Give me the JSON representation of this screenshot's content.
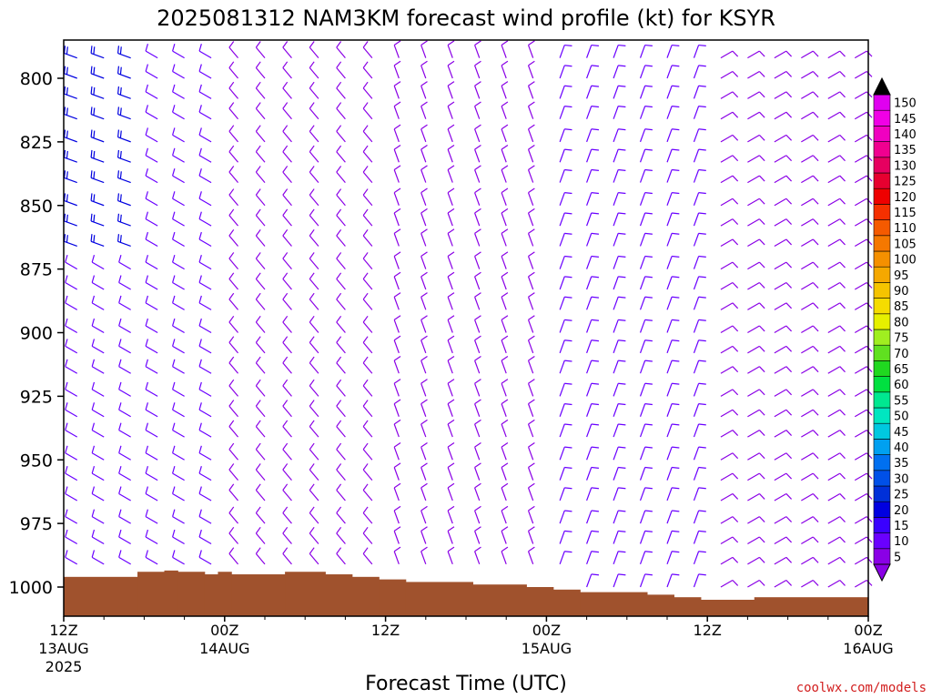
{
  "chart_data": {
    "type": "wind_barb_profile",
    "title": "2025081312 NAM3KM forecast wind profile (kt) for KSYR",
    "xlabel": "Forecast Time (UTC)",
    "ylabel": "",
    "y_axis": {
      "ticks": [
        800,
        825,
        850,
        875,
        900,
        925,
        950,
        975,
        1000
      ],
      "inverted": true,
      "unit": "hPa"
    },
    "x_axis": {
      "ticks": [
        {
          "hour": 0,
          "label": "12Z",
          "sub": [
            "13AUG",
            "2025"
          ]
        },
        {
          "hour": 12,
          "label": "00Z",
          "sub": [
            "14AUG"
          ]
        },
        {
          "hour": 24,
          "label": "12Z",
          "sub": []
        },
        {
          "hour": 36,
          "label": "00Z",
          "sub": [
            "15AUG"
          ]
        },
        {
          "hour": 48,
          "label": "12Z",
          "sub": []
        },
        {
          "hour": 60,
          "label": "00Z",
          "sub": [
            "16AUG"
          ]
        }
      ],
      "range_hours": [
        0,
        60
      ]
    },
    "colorbar": {
      "unit": "kt",
      "levels": [
        5,
        10,
        15,
        20,
        25,
        30,
        35,
        40,
        45,
        50,
        55,
        60,
        65,
        70,
        75,
        80,
        85,
        90,
        95,
        100,
        105,
        110,
        115,
        120,
        125,
        130,
        135,
        140,
        145,
        150
      ],
      "colors": [
        "#8a00e6",
        "#6a00ff",
        "#3a00ff",
        "#0000e0",
        "#0030d8",
        "#0050e8",
        "#0070f0",
        "#00a0f0",
        "#00c8e0",
        "#00e6c0",
        "#00e890",
        "#00e040",
        "#20d820",
        "#60e020",
        "#a0ee20",
        "#e6f000",
        "#f5dc00",
        "#f5c400",
        "#f5a800",
        "#f59000",
        "#f57800",
        "#f55a00",
        "#f53000",
        "#ee0000",
        "#e60030",
        "#e60060",
        "#f00090",
        "#f000c0",
        "#f000e6",
        "#e000f0"
      ],
      "under_color": "#8a00e6",
      "over_color": "#000000"
    },
    "surface_pressure": [
      {
        "from": 0,
        "to": 5.5,
        "p": 996
      },
      {
        "from": 5.5,
        "to": 7.5,
        "p": 994
      },
      {
        "from": 7.5,
        "to": 8.5,
        "p": 993.5
      },
      {
        "from": 8.5,
        "to": 10.5,
        "p": 994
      },
      {
        "from": 10.5,
        "to": 11.5,
        "p": 995
      },
      {
        "from": 11.5,
        "to": 12.5,
        "p": 994
      },
      {
        "from": 12.5,
        "to": 16.5,
        "p": 995
      },
      {
        "from": 16.5,
        "to": 19.5,
        "p": 994
      },
      {
        "from": 19.5,
        "to": 21.5,
        "p": 995
      },
      {
        "from": 21.5,
        "to": 23.5,
        "p": 996
      },
      {
        "from": 23.5,
        "to": 25.5,
        "p": 997
      },
      {
        "from": 25.5,
        "to": 30.5,
        "p": 998
      },
      {
        "from": 30.5,
        "to": 34.5,
        "p": 999
      },
      {
        "from": 34.5,
        "to": 36.5,
        "p": 1000
      },
      {
        "from": 36.5,
        "to": 38.5,
        "p": 1001
      },
      {
        "from": 38.5,
        "to": 43.5,
        "p": 1002
      },
      {
        "from": 43.5,
        "to": 45.5,
        "p": 1003
      },
      {
        "from": 45.5,
        "to": 47.5,
        "p": 1004
      },
      {
        "from": 47.5,
        "to": 51.5,
        "p": 1005
      },
      {
        "from": 51.5,
        "to": 60,
        "p": 1004
      }
    ],
    "barb_grid": {
      "hours_step": 2,
      "hours_start": 1,
      "hours_end": 59,
      "pressure_levels": [
        792,
        800,
        808,
        816,
        825,
        833,
        841,
        850,
        858,
        866,
        875,
        883,
        891,
        900,
        908,
        916,
        925,
        933,
        941,
        950,
        958,
        966,
        975,
        983,
        991,
        1000
      ]
    },
    "wind_regimes": [
      {
        "hours": [
          0,
          6
        ],
        "levels": [
          790,
          870
        ],
        "dir": 290,
        "speed": 20
      },
      {
        "hours": [
          0,
          6
        ],
        "levels": [
          870,
          1000
        ],
        "dir": 300,
        "speed": 12
      },
      {
        "hours": [
          6,
          12
        ],
        "levels": [
          790,
          1000
        ],
        "dir": 300,
        "speed": 10
      },
      {
        "hours": [
          12,
          24
        ],
        "levels": [
          790,
          1000
        ],
        "dir": 320,
        "speed": 8
      },
      {
        "hours": [
          24,
          36
        ],
        "levels": [
          790,
          1000
        ],
        "dir": 340,
        "speed": 8
      },
      {
        "hours": [
          36,
          48
        ],
        "levels": [
          790,
          1000
        ],
        "dir": 20,
        "speed": 10
      },
      {
        "hours": [
          48,
          60
        ],
        "levels": [
          790,
          1000
        ],
        "dir": 60,
        "speed": 8
      }
    ]
  },
  "credit": "coolwx.com/models"
}
